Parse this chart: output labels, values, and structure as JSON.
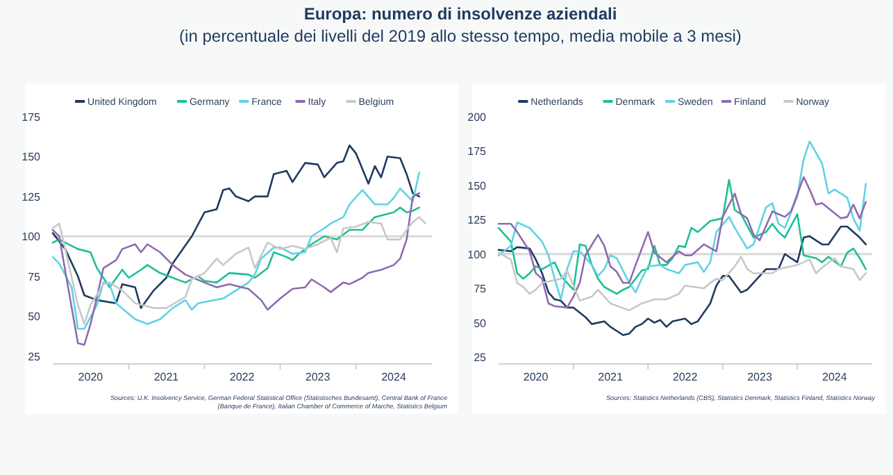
{
  "chart_data": [
    {
      "type": "line",
      "title": "Europa: numero di insolvenze aziendali",
      "subtitle": "(in percentuale dei livelli del 2019 allo stesso tempo, media mobile a 3 mesi)",
      "legend": "top",
      "grid": false,
      "line_style": "solid",
      "xlim": [
        "2020-01",
        "2025-01"
      ],
      "ylim": [
        20,
        175
      ],
      "yticks": [
        25,
        50,
        75,
        100,
        125,
        150,
        175
      ],
      "xticks": [
        {
          "value": "2020-07",
          "label": "2020"
        },
        {
          "value": "2021-01",
          "label": null
        },
        {
          "value": "2021-07",
          "label": "2021"
        },
        {
          "value": "2022-01",
          "label": null
        },
        {
          "value": "2022-07",
          "label": "2022"
        },
        {
          "value": "2023-01",
          "label": null
        },
        {
          "value": "2023-07",
          "label": "2023"
        },
        {
          "value": "2024-01",
          "label": null
        },
        {
          "value": "2024-07",
          "label": "2024"
        }
      ],
      "ref_lines": [
        {
          "axis": "y",
          "value": 100,
          "color": "#d9d9d9"
        }
      ],
      "annotations": [
        "Sources: U.K. Insolvency Service, German Federal Statistical Office (Statistisches Bundesamt), Central Bank of France (Banque de France), Italian Chamber of Commerce of Marche, Statistics Belgium"
      ],
      "series": [
        {
          "name": "United Kingdom",
          "color": "#1f3a5f",
          "x": [
            "2020-01",
            "2020-03",
            "2020-05",
            "2020-06",
            "2020-08",
            "2020-11",
            "2020-12",
            "2021-02",
            "2021-03",
            "2021-05",
            "2021-07",
            "2021-08",
            "2021-11",
            "2022-01",
            "2022-03",
            "2022-04",
            "2022-05",
            "2022-06",
            "2022-08",
            "2022-09",
            "2022-11",
            "2022-12",
            "2023-02",
            "2023-03",
            "2023-05",
            "2023-07",
            "2023-08",
            "2023-10",
            "2023-11",
            "2023-12",
            "2024-01",
            "2024-03",
            "2024-04",
            "2024-05",
            "2024-06",
            "2024-08",
            "2024-09",
            "2024-10",
            "2024-11"
          ],
          "values": [
            102,
            92,
            75,
            63,
            60,
            58,
            70,
            68,
            55,
            66,
            74,
            83,
            100,
            115,
            117,
            129,
            130,
            125,
            122,
            125,
            125,
            139,
            141,
            134,
            146,
            145,
            137,
            146,
            147,
            157,
            152,
            133,
            144,
            137,
            150,
            149,
            139,
            127,
            125
          ]
        },
        {
          "name": "Germany",
          "color": "#1dbf95",
          "x": [
            "2020-01",
            "2020-02",
            "2020-05",
            "2020-07",
            "2020-08",
            "2020-10",
            "2020-12",
            "2021-01",
            "2021-03",
            "2021-04",
            "2021-06",
            "2021-08",
            "2021-10",
            "2021-12",
            "2022-01",
            "2022-03",
            "2022-05",
            "2022-08",
            "2022-09",
            "2022-11",
            "2022-12",
            "2023-02",
            "2023-03",
            "2023-04",
            "2023-06",
            "2023-08",
            "2023-10",
            "2023-12",
            "2024-02",
            "2024-03",
            "2024-04",
            "2024-07",
            "2024-08",
            "2024-09",
            "2024-10",
            "2024-11"
          ],
          "values": [
            96,
            98,
            92,
            90,
            80,
            68,
            79,
            74,
            79,
            82,
            77,
            74,
            71,
            75,
            72,
            71,
            77,
            76,
            74,
            80,
            90,
            87,
            85,
            89,
            95,
            100,
            98,
            104,
            104,
            108,
            112,
            115,
            118,
            115,
            116,
            118
          ]
        },
        {
          "name": "France",
          "color": "#5fd3e3",
          "x": [
            "2020-01",
            "2020-02",
            "2020-04",
            "2020-05",
            "2020-06",
            "2020-08",
            "2020-09",
            "2020-10",
            "2020-11",
            "2021-02",
            "2021-04",
            "2021-06",
            "2021-08",
            "2021-10",
            "2021-11",
            "2021-12",
            "2022-04",
            "2022-06",
            "2022-08",
            "2022-09",
            "2022-10",
            "2022-12",
            "2023-01",
            "2023-03",
            "2023-05",
            "2023-06",
            "2023-08",
            "2023-09",
            "2023-11",
            "2023-12",
            "2024-02",
            "2024-04",
            "2024-06",
            "2024-07",
            "2024-08",
            "2024-10",
            "2024-11"
          ],
          "values": [
            87,
            83,
            68,
            42,
            42,
            57,
            71,
            70,
            58,
            48,
            45,
            48,
            55,
            60,
            54,
            58,
            61,
            66,
            71,
            76,
            86,
            93,
            93,
            89,
            90,
            100,
            105,
            108,
            112,
            120,
            129,
            120,
            120,
            124,
            130,
            122,
            140
          ]
        },
        {
          "name": "Italy",
          "color": "#8e6bb0",
          "x": [
            "2020-01",
            "2020-02",
            "2020-05",
            "2020-06",
            "2020-07",
            "2020-08",
            "2020-09",
            "2020-11",
            "2020-12",
            "2021-02",
            "2021-03",
            "2021-04",
            "2021-06",
            "2021-08",
            "2021-10",
            "2022-01",
            "2022-03",
            "2022-05",
            "2022-08",
            "2022-10",
            "2022-11",
            "2023-01",
            "2023-03",
            "2023-05",
            "2023-06",
            "2023-08",
            "2023-09",
            "2023-11",
            "2023-12",
            "2024-02",
            "2024-03",
            "2024-05",
            "2024-07",
            "2024-08",
            "2024-09",
            "2024-10",
            "2024-11"
          ],
          "values": [
            104,
            100,
            33,
            32,
            45,
            62,
            80,
            85,
            92,
            95,
            90,
            95,
            90,
            82,
            76,
            71,
            68,
            70,
            67,
            60,
            54,
            61,
            67,
            68,
            73,
            68,
            65,
            71,
            70,
            74,
            77,
            79,
            82,
            86,
            98,
            125,
            127
          ]
        },
        {
          "name": "Belgium",
          "color": "#c8c8c8",
          "x": [
            "2020-01",
            "2020-02",
            "2020-03",
            "2020-05",
            "2020-06",
            "2020-07",
            "2020-09",
            "2020-10",
            "2020-12",
            "2021-02",
            "2021-05",
            "2021-07",
            "2021-10",
            "2021-11",
            "2022-01",
            "2022-03",
            "2022-04",
            "2022-06",
            "2022-08",
            "2022-09",
            "2022-11",
            "2023-01",
            "2023-03",
            "2023-05",
            "2023-07",
            "2023-09",
            "2023-10",
            "2023-11",
            "2024-01",
            "2024-03",
            "2024-05",
            "2024-06",
            "2024-08",
            "2024-09",
            "2024-10",
            "2024-11",
            "2024-12"
          ],
          "values": [
            105,
            108,
            92,
            57,
            45,
            57,
            70,
            71,
            66,
            58,
            55,
            55,
            62,
            73,
            77,
            86,
            82,
            89,
            93,
            80,
            96,
            92,
            94,
            92,
            95,
            99,
            90,
            105,
            106,
            109,
            108,
            98,
            98,
            104,
            109,
            112,
            108
          ]
        }
      ]
    },
    {
      "type": "line",
      "legend": "top",
      "grid": false,
      "line_style": "solid",
      "xlim": [
        "2020-01",
        "2025-01"
      ],
      "ylim": [
        20,
        200
      ],
      "yticks": [
        25,
        50,
        75,
        100,
        125,
        150,
        175,
        200
      ],
      "xticks": [
        {
          "value": "2020-07",
          "label": "2020"
        },
        {
          "value": "2021-01",
          "label": null
        },
        {
          "value": "2021-07",
          "label": "2021"
        },
        {
          "value": "2022-01",
          "label": null
        },
        {
          "value": "2022-07",
          "label": "2022"
        },
        {
          "value": "2023-01",
          "label": null
        },
        {
          "value": "2023-07",
          "label": "2023"
        },
        {
          "value": "2024-01",
          "label": null
        },
        {
          "value": "2024-07",
          "label": "2024"
        }
      ],
      "ref_lines": [
        {
          "axis": "y",
          "value": 100,
          "color": "#d9d9d9"
        }
      ],
      "annotations": [
        "Sources: Statistics Netherlands (CBS), Statistics Denmark, Statistics Finland, Statistics Norway"
      ],
      "series": [
        {
          "name": "Netherlands",
          "color": "#1f3a5f",
          "x": [
            "2020-01",
            "2020-03",
            "2020-04",
            "2020-06",
            "2020-07",
            "2020-08",
            "2020-09",
            "2020-10",
            "2020-11",
            "2020-12",
            "2021-01",
            "2021-03",
            "2021-04",
            "2021-06",
            "2021-07",
            "2021-09",
            "2021-10",
            "2021-11",
            "2021-12",
            "2022-01",
            "2022-02",
            "2022-03",
            "2022-04",
            "2022-05",
            "2022-07",
            "2022-08",
            "2022-09",
            "2022-11",
            "2022-12",
            "2023-01",
            "2023-02",
            "2023-04",
            "2023-05",
            "2023-07",
            "2023-08",
            "2023-10",
            "2023-11",
            "2023-12",
            "2024-01",
            "2024-02",
            "2024-03",
            "2024-05",
            "2024-06",
            "2024-08",
            "2024-09",
            "2024-11",
            "2024-12"
          ],
          "values": [
            103,
            102,
            105,
            104,
            96,
            86,
            72,
            67,
            66,
            61,
            61,
            54,
            49,
            51,
            47,
            41,
            42,
            47,
            49,
            53,
            50,
            52,
            47,
            51,
            53,
            49,
            51,
            64,
            77,
            84,
            84,
            72,
            74,
            84,
            89,
            89,
            100,
            97,
            94,
            112,
            113,
            107,
            107,
            120,
            120,
            112,
            107
          ]
        },
        {
          "name": "Denmark",
          "color": "#1dbf95",
          "x": [
            "2020-01",
            "2020-03",
            "2020-04",
            "2020-05",
            "2020-06",
            "2020-07",
            "2020-08",
            "2020-10",
            "2020-11",
            "2020-12",
            "2021-01",
            "2021-02",
            "2021-03",
            "2021-04",
            "2021-05",
            "2021-06",
            "2021-08",
            "2021-09",
            "2021-10",
            "2021-11",
            "2021-12",
            "2022-01",
            "2022-02",
            "2022-03",
            "2022-04",
            "2022-05",
            "2022-06",
            "2022-07",
            "2022-08",
            "2022-09",
            "2022-11",
            "2023-01",
            "2023-02",
            "2023-03",
            "2023-04",
            "2023-06",
            "2023-08",
            "2023-09",
            "2023-10",
            "2023-11",
            "2024-01",
            "2024-02",
            "2024-04",
            "2024-05",
            "2024-06",
            "2024-08",
            "2024-09",
            "2024-10",
            "2024-11",
            "2024-12"
          ],
          "values": [
            119,
            109,
            86,
            82,
            86,
            91,
            89,
            94,
            84,
            79,
            74,
            107,
            106,
            92,
            82,
            76,
            71,
            74,
            76,
            82,
            88,
            89,
            106,
            92,
            92,
            97,
            106,
            105,
            119,
            116,
            124,
            126,
            154,
            132,
            129,
            112,
            116,
            122,
            116,
            112,
            129,
            99,
            97,
            94,
            98,
            91,
            101,
            104,
            97,
            89
          ]
        },
        {
          "name": "Sweden",
          "color": "#5fd3e3",
          "x": [
            "2020-01",
            "2020-03",
            "2020-04",
            "2020-06",
            "2020-08",
            "2020-09",
            "2020-10",
            "2020-11",
            "2020-12",
            "2021-01",
            "2021-02",
            "2021-04",
            "2021-05",
            "2021-06",
            "2021-07",
            "2021-08",
            "2021-10",
            "2021-11",
            "2021-12",
            "2022-01",
            "2022-03",
            "2022-04",
            "2022-06",
            "2022-07",
            "2022-09",
            "2022-10",
            "2022-11",
            "2022-12",
            "2023-02",
            "2023-03",
            "2023-05",
            "2023-06",
            "2023-08",
            "2023-09",
            "2023-10",
            "2023-11",
            "2024-01",
            "2024-02",
            "2024-03",
            "2024-05",
            "2024-06",
            "2024-07",
            "2024-09",
            "2024-10",
            "2024-11",
            "2024-12"
          ],
          "values": [
            99,
            106,
            123,
            119,
            109,
            99,
            82,
            67,
            89,
            102,
            102,
            92,
            84,
            89,
            99,
            97,
            79,
            72,
            82,
            91,
            92,
            89,
            86,
            92,
            94,
            87,
            94,
            116,
            127,
            119,
            104,
            107,
            134,
            137,
            122,
            119,
            142,
            169,
            182,
            166,
            144,
            147,
            141,
            126,
            117,
            151
          ]
        },
        {
          "name": "Finland",
          "color": "#8e6bb0",
          "x": [
            "2020-01",
            "2020-03",
            "2020-04",
            "2020-06",
            "2020-07",
            "2020-08",
            "2020-09",
            "2020-10",
            "2020-12",
            "2021-01",
            "2021-02",
            "2021-03",
            "2021-05",
            "2021-06",
            "2021-07",
            "2021-08",
            "2021-09",
            "2021-10",
            "2021-11",
            "2022-01",
            "2022-02",
            "2022-04",
            "2022-06",
            "2022-07",
            "2022-08",
            "2022-10",
            "2022-12",
            "2023-01",
            "2023-03",
            "2023-04",
            "2023-05",
            "2023-06",
            "2023-07",
            "2023-09",
            "2023-11",
            "2023-12",
            "2024-02",
            "2024-03",
            "2024-04",
            "2024-05",
            "2024-08",
            "2024-09",
            "2024-10",
            "2024-11",
            "2024-12"
          ],
          "values": [
            122,
            122,
            116,
            102,
            86,
            82,
            64,
            62,
            61,
            69,
            79,
            99,
            114,
            106,
            91,
            87,
            79,
            79,
            92,
            116,
            101,
            94,
            102,
            99,
            99,
            107,
            102,
            127,
            144,
            129,
            126,
            114,
            110,
            131,
            127,
            131,
            156,
            147,
            136,
            137,
            126,
            127,
            136,
            126,
            138
          ]
        },
        {
          "name": "Norway",
          "color": "#c8c8c8",
          "x": [
            "2020-01",
            "2020-03",
            "2020-04",
            "2020-05",
            "2020-06",
            "2020-07",
            "2020-08",
            "2020-11",
            "2020-12",
            "2021-01",
            "2021-02",
            "2021-04",
            "2021-05",
            "2021-07",
            "2021-10",
            "2021-12",
            "2022-02",
            "2022-04",
            "2022-06",
            "2022-07",
            "2022-10",
            "2022-11",
            "2022-12",
            "2023-01",
            "2023-03",
            "2023-04",
            "2023-05",
            "2023-06",
            "2023-09",
            "2023-10",
            "2023-12",
            "2024-01",
            "2024-03",
            "2024-04",
            "2024-05",
            "2024-07",
            "2024-08",
            "2024-10",
            "2024-11",
            "2024-12"
          ],
          "values": [
            101,
            96,
            79,
            76,
            71,
            74,
            79,
            82,
            88,
            77,
            66,
            69,
            74,
            64,
            59,
            64,
            67,
            67,
            71,
            77,
            75,
            79,
            82,
            81,
            91,
            98,
            89,
            86,
            86,
            89,
            91,
            92,
            96,
            86,
            90,
            97,
            91,
            89,
            81,
            86
          ]
        }
      ]
    }
  ]
}
